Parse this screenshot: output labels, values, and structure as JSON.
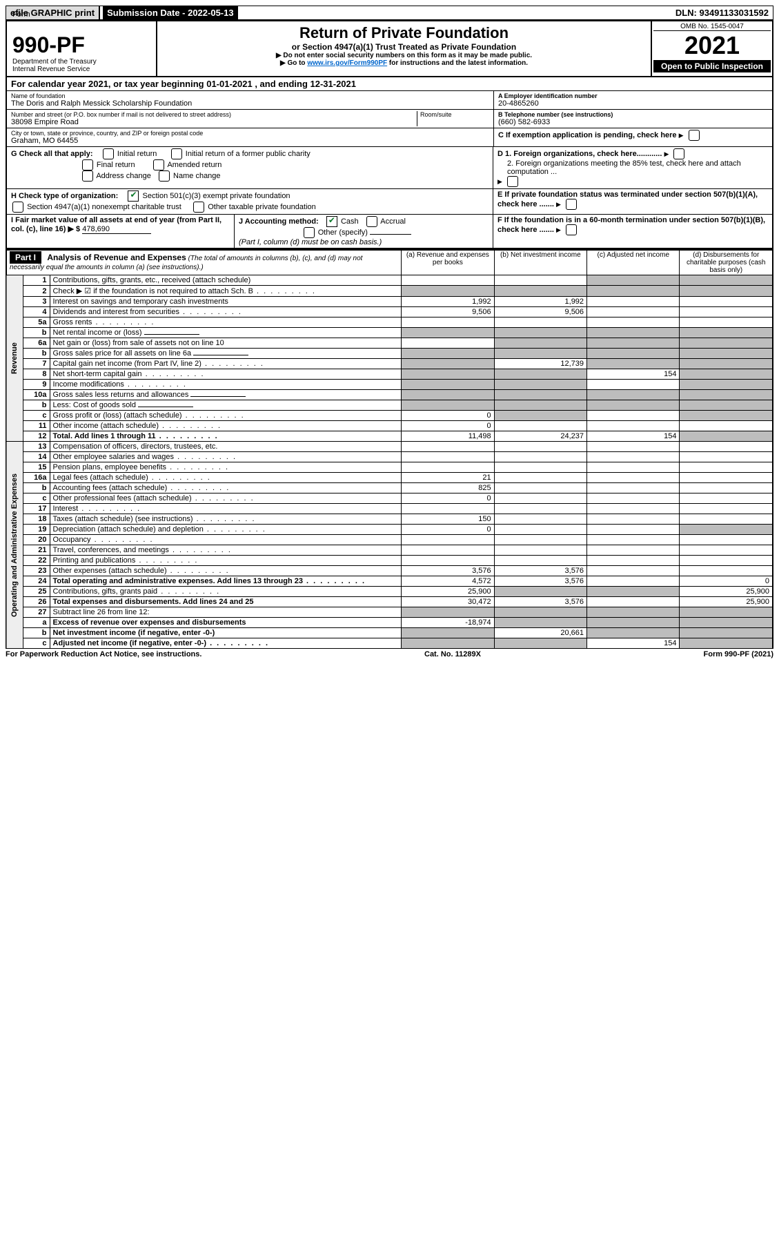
{
  "topbar": {
    "efile": "efile GRAPHIC print",
    "submission_label": "Submission Date - 2022-05-13",
    "dln": "DLN: 93491133031592"
  },
  "header": {
    "form_word": "Form",
    "form_no": "990-PF",
    "dept": "Department of the Treasury",
    "irs": "Internal Revenue Service",
    "title": "Return of Private Foundation",
    "subtitle": "or Section 4947(a)(1) Trust Treated as Private Foundation",
    "instr1": "▶ Do not enter social security numbers on this form as it may be made public.",
    "instr2_pre": "▶ Go to ",
    "instr2_link": "www.irs.gov/Form990PF",
    "instr2_post": " for instructions and the latest information.",
    "omb": "OMB No. 1545-0047",
    "year": "2021",
    "open": "Open to Public Inspection"
  },
  "cal_year": "For calendar year 2021, or tax year beginning 01-01-2021             , and ending 12-31-2021",
  "id": {
    "name_label": "Name of foundation",
    "name": "The Doris and Ralph Messick Scholarship Foundation",
    "addr_label": "Number and street (or P.O. box number if mail is not delivered to street address)",
    "room_label": "Room/suite",
    "addr": "38098 Empire Road",
    "city_label": "City or town, state or province, country, and ZIP or foreign postal code",
    "city": "Graham, MO  64455",
    "ein_label": "A Employer identification number",
    "ein": "20-4865260",
    "tel_label": "B Telephone number (see instructions)",
    "tel": "(660) 582-6933",
    "c_label": "C If exemption application is pending, check here",
    "g_label": "G Check all that apply:",
    "g_items": [
      "Initial return",
      "Initial return of a former public charity",
      "Final return",
      "Amended return",
      "Address change",
      "Name change"
    ],
    "d1": "D 1. Foreign organizations, check here............",
    "d2": "2. Foreign organizations meeting the 85% test, check here and attach computation ...",
    "h_label": "H Check type of organization:",
    "h1": "Section 501(c)(3) exempt private foundation",
    "h2": "Section 4947(a)(1) nonexempt charitable trust",
    "h3": "Other taxable private foundation",
    "e_label": "E  If private foundation status was terminated under section 507(b)(1)(A), check here .......",
    "i_label": "I Fair market value of all assets at end of year (from Part II, col. (c), line 16) ▶ $",
    "i_val": "478,690",
    "j_label": "J Accounting method:",
    "j_cash": "Cash",
    "j_accrual": "Accrual",
    "j_other": "Other (specify)",
    "j_note": "(Part I, column (d) must be on cash basis.)",
    "f_label": "F  If the foundation is in a 60-month termination under section 507(b)(1)(B), check here .......",
    "sch_b": "if the foundation is not required to attach Sch. B"
  },
  "part1": {
    "label": "Part I",
    "title": "Analysis of Revenue and Expenses",
    "title_note": "(The total of amounts in columns (b), (c), and (d) may not necessarily equal the amounts in column (a) (see instructions).)",
    "col_a": "(a)   Revenue and expenses per books",
    "col_b": "(b)   Net investment income",
    "col_c": "(c)   Adjusted net income",
    "col_d": "(d)  Disbursements for charitable purposes (cash basis only)",
    "revenue_label": "Revenue",
    "expenses_label": "Operating and Administrative Expenses"
  },
  "rows": [
    {
      "n": "1",
      "d": "Contributions, gifts, grants, etc., received (attach schedule)",
      "a": "",
      "b": "",
      "c": "",
      "dd": "",
      "shade_b": false,
      "shade_c": true,
      "shade_d": true
    },
    {
      "n": "2",
      "d": "Check ▶ ☑ if the foundation is not required to attach Sch. B",
      "a": "",
      "b": "",
      "c": "",
      "dd": "",
      "shade_a": true,
      "shade_b": true,
      "shade_c": true,
      "shade_d": true,
      "dots": true
    },
    {
      "n": "3",
      "d": "Interest on savings and temporary cash investments",
      "a": "1,992",
      "b": "1,992",
      "c": "",
      "dd": ""
    },
    {
      "n": "4",
      "d": "Dividends and interest from securities",
      "a": "9,506",
      "b": "9,506",
      "c": "",
      "dd": "",
      "dots": true
    },
    {
      "n": "5a",
      "d": "Gross rents",
      "a": "",
      "b": "",
      "c": "",
      "dd": "",
      "dots": true
    },
    {
      "n": "b",
      "d": "Net rental income or (loss)",
      "a": "",
      "b": "",
      "c": "",
      "dd": "",
      "shade_a": true,
      "shade_b": true,
      "shade_c": true,
      "shade_d": true,
      "has_line": true
    },
    {
      "n": "6a",
      "d": "Net gain or (loss) from sale of assets not on line 10",
      "a": "",
      "b": "",
      "c": "",
      "dd": "",
      "shade_b": true,
      "shade_c": true,
      "shade_d": true
    },
    {
      "n": "b",
      "d": "Gross sales price for all assets on line 6a",
      "a": "",
      "b": "",
      "c": "",
      "dd": "",
      "shade_a": true,
      "shade_b": true,
      "shade_c": true,
      "shade_d": true,
      "has_line": true
    },
    {
      "n": "7",
      "d": "Capital gain net income (from Part IV, line 2)",
      "a": "",
      "b": "12,739",
      "c": "",
      "dd": "",
      "shade_a": true,
      "shade_c": true,
      "shade_d": true,
      "dots": true
    },
    {
      "n": "8",
      "d": "Net short-term capital gain",
      "a": "",
      "b": "",
      "c": "154",
      "dd": "",
      "shade_a": true,
      "shade_b": true,
      "shade_d": true,
      "dots": true
    },
    {
      "n": "9",
      "d": "Income modifications",
      "a": "",
      "b": "",
      "c": "",
      "dd": "",
      "shade_a": true,
      "shade_b": true,
      "shade_d": true,
      "dots": true
    },
    {
      "n": "10a",
      "d": "Gross sales less returns and allowances",
      "a": "",
      "b": "",
      "c": "",
      "dd": "",
      "shade_a": true,
      "shade_b": true,
      "shade_c": true,
      "shade_d": true,
      "has_line": true
    },
    {
      "n": "b",
      "d": "Less: Cost of goods sold",
      "a": "",
      "b": "",
      "c": "",
      "dd": "",
      "shade_a": true,
      "shade_b": true,
      "shade_c": true,
      "shade_d": true,
      "dots": true,
      "has_line": true
    },
    {
      "n": "c",
      "d": "Gross profit or (loss) (attach schedule)",
      "a": "0",
      "b": "",
      "c": "",
      "dd": "",
      "shade_b": true,
      "shade_d": true,
      "dots": true
    },
    {
      "n": "11",
      "d": "Other income (attach schedule)",
      "a": "0",
      "b": "",
      "c": "",
      "dd": "",
      "dots": true
    },
    {
      "n": "12",
      "d": "Total. Add lines 1 through 11",
      "a": "11,498",
      "b": "24,237",
      "c": "154",
      "dd": "",
      "bold": true,
      "shade_d": true,
      "dots": true
    },
    {
      "n": "13",
      "d": "Compensation of officers, directors, trustees, etc.",
      "a": "",
      "b": "",
      "c": "",
      "dd": ""
    },
    {
      "n": "14",
      "d": "Other employee salaries and wages",
      "a": "",
      "b": "",
      "c": "",
      "dd": "",
      "dots": true
    },
    {
      "n": "15",
      "d": "Pension plans, employee benefits",
      "a": "",
      "b": "",
      "c": "",
      "dd": "",
      "dots": true
    },
    {
      "n": "16a",
      "d": "Legal fees (attach schedule)",
      "a": "21",
      "b": "",
      "c": "",
      "dd": "",
      "dots": true
    },
    {
      "n": "b",
      "d": "Accounting fees (attach schedule)",
      "a": "825",
      "b": "",
      "c": "",
      "dd": "",
      "dots": true
    },
    {
      "n": "c",
      "d": "Other professional fees (attach schedule)",
      "a": "0",
      "b": "",
      "c": "",
      "dd": "",
      "dots": true
    },
    {
      "n": "17",
      "d": "Interest",
      "a": "",
      "b": "",
      "c": "",
      "dd": "",
      "dots": true
    },
    {
      "n": "18",
      "d": "Taxes (attach schedule) (see instructions)",
      "a": "150",
      "b": "",
      "c": "",
      "dd": "",
      "dots": true
    },
    {
      "n": "19",
      "d": "Depreciation (attach schedule) and depletion",
      "a": "0",
      "b": "",
      "c": "",
      "dd": "",
      "shade_d": true,
      "dots": true
    },
    {
      "n": "20",
      "d": "Occupancy",
      "a": "",
      "b": "",
      "c": "",
      "dd": "",
      "dots": true
    },
    {
      "n": "21",
      "d": "Travel, conferences, and meetings",
      "a": "",
      "b": "",
      "c": "",
      "dd": "",
      "dots": true
    },
    {
      "n": "22",
      "d": "Printing and publications",
      "a": "",
      "b": "",
      "c": "",
      "dd": "",
      "dots": true
    },
    {
      "n": "23",
      "d": "Other expenses (attach schedule)",
      "a": "3,576",
      "b": "3,576",
      "c": "",
      "dd": "",
      "dots": true
    },
    {
      "n": "24",
      "d": "Total operating and administrative expenses. Add lines 13 through 23",
      "a": "4,572",
      "b": "3,576",
      "c": "",
      "dd": "0",
      "bold": true,
      "dots": true
    },
    {
      "n": "25",
      "d": "Contributions, gifts, grants paid",
      "a": "25,900",
      "b": "",
      "c": "",
      "dd": "25,900",
      "shade_b": true,
      "shade_c": true,
      "dots": true
    },
    {
      "n": "26",
      "d": "Total expenses and disbursements. Add lines 24 and 25",
      "a": "30,472",
      "b": "3,576",
      "c": "",
      "dd": "25,900",
      "bold": true
    },
    {
      "n": "27",
      "d": "Subtract line 26 from line 12:",
      "a": "",
      "b": "",
      "c": "",
      "dd": "",
      "shade_a": true,
      "shade_b": true,
      "shade_c": true,
      "shade_d": true
    },
    {
      "n": "a",
      "d": "Excess of revenue over expenses and disbursements",
      "a": "-18,974",
      "b": "",
      "c": "",
      "dd": "",
      "bold": true,
      "shade_b": true,
      "shade_c": true,
      "shade_d": true
    },
    {
      "n": "b",
      "d": "Net investment income (if negative, enter -0-)",
      "a": "",
      "b": "20,661",
      "c": "",
      "dd": "",
      "bold": true,
      "shade_a": true,
      "shade_c": true,
      "shade_d": true
    },
    {
      "n": "c",
      "d": "Adjusted net income (if negative, enter -0-)",
      "a": "",
      "b": "",
      "c": "154",
      "dd": "",
      "bold": true,
      "shade_a": true,
      "shade_b": true,
      "shade_d": true,
      "dots": true
    }
  ],
  "footer": {
    "left": "For Paperwork Reduction Act Notice, see instructions.",
    "center": "Cat. No. 11289X",
    "right": "Form 990-PF (2021)"
  }
}
